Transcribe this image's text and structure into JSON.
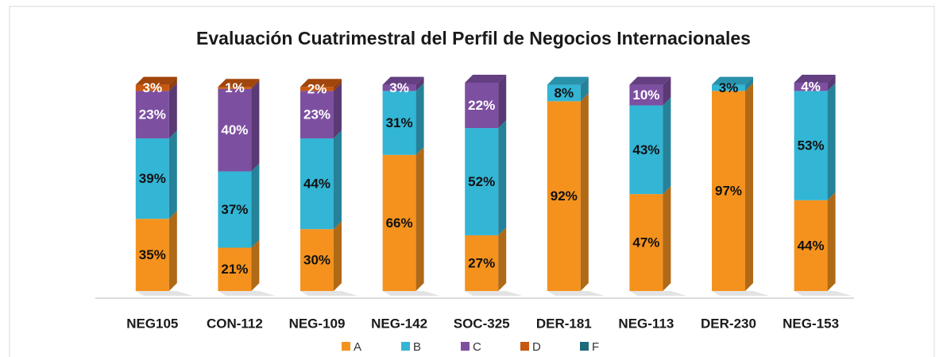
{
  "chart_data": {
    "type": "bar",
    "stacked": true,
    "title": "Evaluación Cuatrimestral del Perfil de Negocios Internacionales",
    "categories": [
      "NEG105",
      "CON-112",
      "NEG-109",
      "NEG-142",
      "SOC-325",
      "DER-181",
      "NEG-113",
      "DER-230",
      "NEG-153"
    ],
    "series": [
      {
        "name": "A",
        "color": "#f5921e",
        "values": [
          35,
          21,
          30,
          66,
          27,
          92,
          47,
          97,
          44
        ],
        "value_labels": [
          "35%",
          "21%",
          "30%",
          "66%",
          "27%",
          "92%",
          "47%",
          "97%",
          "44%"
        ]
      },
      {
        "name": "B",
        "color": "#33b5d5",
        "values": [
          39,
          37,
          44,
          31,
          52,
          8,
          43,
          3,
          53
        ],
        "value_labels": [
          "39%",
          "37%",
          "44%",
          "31%",
          "52%",
          "8%",
          "43%",
          "3%",
          "53%"
        ]
      },
      {
        "name": "C",
        "color": "#7d4fa1",
        "values": [
          23,
          40,
          23,
          3,
          22,
          null,
          10,
          null,
          4
        ],
        "value_labels": [
          "23%",
          "40%",
          "23%",
          "3%",
          "22%",
          null,
          "10%",
          null,
          "4%"
        ]
      },
      {
        "name": "D",
        "color": "#c8580f",
        "values": [
          3,
          1,
          2,
          null,
          null,
          null,
          null,
          null,
          null
        ],
        "value_labels": [
          "3%",
          "1%",
          "2%",
          null,
          null,
          null,
          null,
          null,
          null
        ]
      },
      {
        "name": "F",
        "color": "#1e6c7b",
        "values": [
          null,
          null,
          null,
          null,
          null,
          null,
          null,
          null,
          null
        ],
        "value_labels": [
          null,
          null,
          null,
          null,
          null,
          null,
          null,
          null,
          null
        ]
      }
    ],
    "legend": "bottom"
  }
}
